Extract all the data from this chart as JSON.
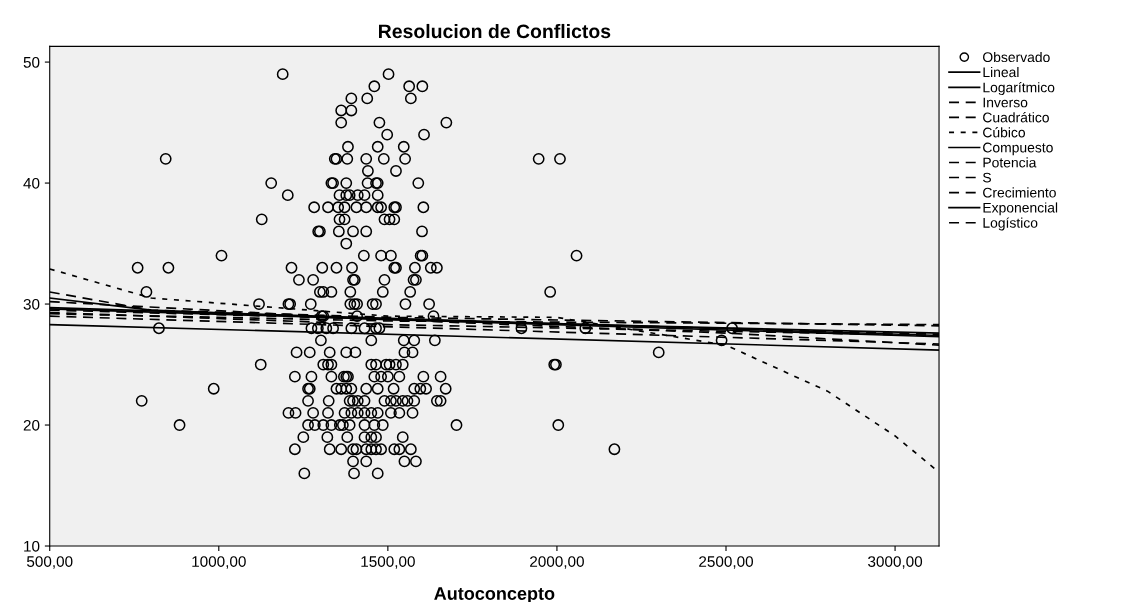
{
  "chart_data": {
    "type": "scatter",
    "title": "Resolucion de Conflictos",
    "xlabel": "Autoconcepto",
    "xlim": [
      500,
      3130
    ],
    "ylim": [
      10,
      51.3
    ],
    "xticks": [
      {
        "value": 500,
        "label": "500,00"
      },
      {
        "value": 1000,
        "label": "1000,00"
      },
      {
        "value": 1500,
        "label": "1500,00"
      },
      {
        "value": 2000,
        "label": "2000,00"
      },
      {
        "value": 2500,
        "label": "2500,00"
      },
      {
        "value": 3000,
        "label": "3000,00"
      }
    ],
    "yticks": [
      10,
      20,
      30,
      40,
      50
    ],
    "grid": false,
    "legend": "top right",
    "series": [
      {
        "name": "Observado",
        "marker": "circle",
        "color": "#000000",
        "x": [
          1189,
          1502,
          1460,
          1563,
          1602,
          1392,
          1439,
          1568,
          1362,
          1392,
          1362,
          1475,
          1673,
          1498,
          1607,
          1382,
          1470,
          1547,
          843,
          1343,
          1348,
          1380,
          1436,
          1488,
          1551,
          1441,
          1524,
          1155,
          1333,
          1338,
          1377,
          1440,
          1465,
          1470,
          1590,
          1204,
          1357,
          1377,
          1387,
          1411,
          1431,
          1470,
          1282,
          1323,
          1353,
          1372,
          1407,
          1436,
          1470,
          1480,
          1519,
          1524,
          1605,
          1127,
          1357,
          1372,
          1490,
          1505,
          1519,
          1294,
          1299,
          1355,
          1397,
          1436,
          1601,
          1377,
          1008,
          1429,
          1480,
          1509,
          1597,
          1602,
          760,
          851,
          1215,
          1306,
          1348,
          1394,
          1519,
          1524,
          1580,
          1627,
          1645,
          1237,
          1279,
          1397,
          1402,
          1490,
          1576,
          1583,
          786,
          1299,
          1309,
          1333,
          1389,
          1485,
          1566,
          1119,
          1206,
          1211,
          1272,
          1389,
          1401,
          1409,
          1455,
          1465,
          1552,
          1622,
          1304,
          1309,
          1409,
          1635,
          823,
          1274,
          1293,
          1318,
          1338,
          1392,
          1431,
          1465,
          1475,
          1302,
          1451,
          1547,
          1578,
          1639,
          1230,
          1269,
          1328,
          1377,
          1404,
          1549,
          1573,
          1124,
          1309,
          1323,
          1333,
          1451,
          1465,
          1495,
          1505,
          1524,
          1544,
          1225,
          1274,
          1333,
          1370,
          1377,
          1382,
          1460,
          1480,
          1500,
          1534,
          1605,
          1656,
          985,
          1264,
          1269,
          1348,
          1362,
          1377,
          1392,
          1436,
          1470,
          1517,
          1578,
          1596,
          1613,
          1671,
          772,
          1264,
          1325,
          1387,
          1397,
          1411,
          1431,
          1490,
          1509,
          1524,
          1544,
          1558,
          1578,
          1645,
          1656,
          1206,
          1227,
          1279,
          1323,
          1372,
          1392,
          1411,
          1431,
          1451,
          1470,
          1509,
          1534,
          1573,
          884,
          1264,
          1284,
          1309,
          1333,
          1358,
          1367,
          1387,
          1431,
          1460,
          1485,
          1703,
          1250,
          1321,
          1380,
          1431,
          1451,
          1465,
          1544,
          1225,
          1328,
          1362,
          1397,
          1407,
          1436,
          1451,
          1465,
          1480,
          1519,
          1534,
          1568,
          1397,
          1436,
          1549,
          1583,
          1253,
          1400,
          1470,
          1946,
          2009,
          2058,
          1980,
          1895,
          2084,
          2518,
          2487,
          2301,
          1992,
          1997,
          2004,
          2170
        ],
        "values": [
          49,
          49,
          48,
          48,
          48,
          47,
          47,
          47,
          46,
          46,
          45,
          45,
          45,
          44,
          44,
          43,
          43,
          43,
          42,
          42,
          42,
          42,
          42,
          42,
          42,
          41,
          41,
          40,
          40,
          40,
          40,
          40,
          40,
          40,
          40,
          39,
          39,
          39,
          39,
          39,
          39,
          39,
          38,
          38,
          38,
          38,
          38,
          38,
          38,
          38,
          38,
          38,
          38,
          37,
          37,
          37,
          37,
          37,
          37,
          36,
          36,
          36,
          36,
          36,
          36,
          35,
          34,
          34,
          34,
          34,
          34,
          34,
          33,
          33,
          33,
          33,
          33,
          33,
          33,
          33,
          33,
          33,
          33,
          32,
          32,
          32,
          32,
          32,
          32,
          32,
          31,
          31,
          31,
          31,
          31,
          31,
          31,
          30,
          30,
          30,
          30,
          30,
          30,
          30,
          30,
          30,
          30,
          30,
          29,
          29,
          29,
          29,
          28,
          28,
          28,
          28,
          28,
          28,
          28,
          28,
          28,
          27,
          27,
          27,
          27,
          27,
          26,
          26,
          26,
          26,
          26,
          26,
          26,
          25,
          25,
          25,
          25,
          25,
          25,
          25,
          25,
          25,
          25,
          24,
          24,
          24,
          24,
          24,
          24,
          24,
          24,
          24,
          24,
          24,
          24,
          23,
          23,
          23,
          23,
          23,
          23,
          23,
          23,
          23,
          23,
          23,
          23,
          23,
          23,
          22,
          22,
          22,
          22,
          22,
          22,
          22,
          22,
          22,
          22,
          22,
          22,
          22,
          22,
          22,
          21,
          21,
          21,
          21,
          21,
          21,
          21,
          21,
          21,
          21,
          21,
          21,
          21,
          20,
          20,
          20,
          20,
          20,
          20,
          20,
          20,
          20,
          20,
          20,
          20,
          19,
          19,
          19,
          19,
          19,
          19,
          19,
          18,
          18,
          18,
          18,
          18,
          18,
          18,
          18,
          18,
          18,
          18,
          18,
          17,
          17,
          17,
          17,
          16,
          16,
          16,
          42,
          42,
          34,
          31,
          28,
          28,
          28,
          27,
          26,
          25,
          25,
          20,
          18
        ]
      },
      {
        "name": "Lineal",
        "type": "line",
        "line_style": "solid",
        "color": "#000000",
        "x": [
          500,
          3130
        ],
        "values": [
          29.6,
          27.3
        ]
      },
      {
        "name": "Logarítmico",
        "type": "line",
        "line_style": "solid",
        "color": "#000000",
        "x": [
          500,
          800,
          1500,
          3130
        ],
        "values": [
          30.5,
          29.5,
          28.7,
          27.6
        ]
      },
      {
        "name": "Inverso",
        "type": "line",
        "line_style": "dashed",
        "color": "#000000",
        "x": [
          500,
          800,
          1500,
          3130
        ],
        "values": [
          31,
          29.5,
          28.9,
          28.2
        ]
      },
      {
        "name": "Cuadrático",
        "type": "line",
        "line_style": "dashed",
        "color": "#000000",
        "x": [
          500,
          1500,
          2500,
          3130
        ],
        "values": [
          30.2,
          28.7,
          27.6,
          26.6
        ]
      },
      {
        "name": "Cúbico",
        "type": "line",
        "line_style": "dotted",
        "color": "#000000",
        "x": [
          500,
          800,
          1500,
          2000,
          2500,
          2800,
          3000,
          3130
        ],
        "values": [
          32.9,
          30.5,
          29,
          28.9,
          26.6,
          22.8,
          19.1,
          16.1
        ]
      },
      {
        "name": "Compuesto",
        "type": "line",
        "line_style": "solid",
        "color": "#000000",
        "x": [
          500,
          3130
        ],
        "values": [
          29.7,
          27.4
        ]
      },
      {
        "name": "Potencia",
        "type": "line",
        "line_style": "dashed",
        "color": "#000000",
        "x": [
          500,
          1500,
          3130
        ],
        "values": [
          29.3,
          28.3,
          27.4
        ]
      },
      {
        "name": "S",
        "type": "line",
        "line_style": "dashed",
        "color": "#000000",
        "x": [
          500,
          1500,
          3130
        ],
        "values": [
          29.2,
          28.6,
          28.3
        ]
      },
      {
        "name": "Crecimiento",
        "type": "line",
        "line_style": "dashed",
        "color": "#000000",
        "x": [
          500,
          3130
        ],
        "values": [
          29.5,
          27.5
        ]
      },
      {
        "name": "Exponencial",
        "type": "line",
        "line_style": "solid",
        "color": "#000000",
        "x": [
          500,
          3130
        ],
        "values": [
          28.3,
          26.2
        ]
      },
      {
        "name": "Logístico",
        "type": "line",
        "line_style": "dashed",
        "color": "#000000",
        "x": [
          500,
          3130
        ],
        "values": [
          29.0,
          26.7
        ]
      }
    ]
  }
}
